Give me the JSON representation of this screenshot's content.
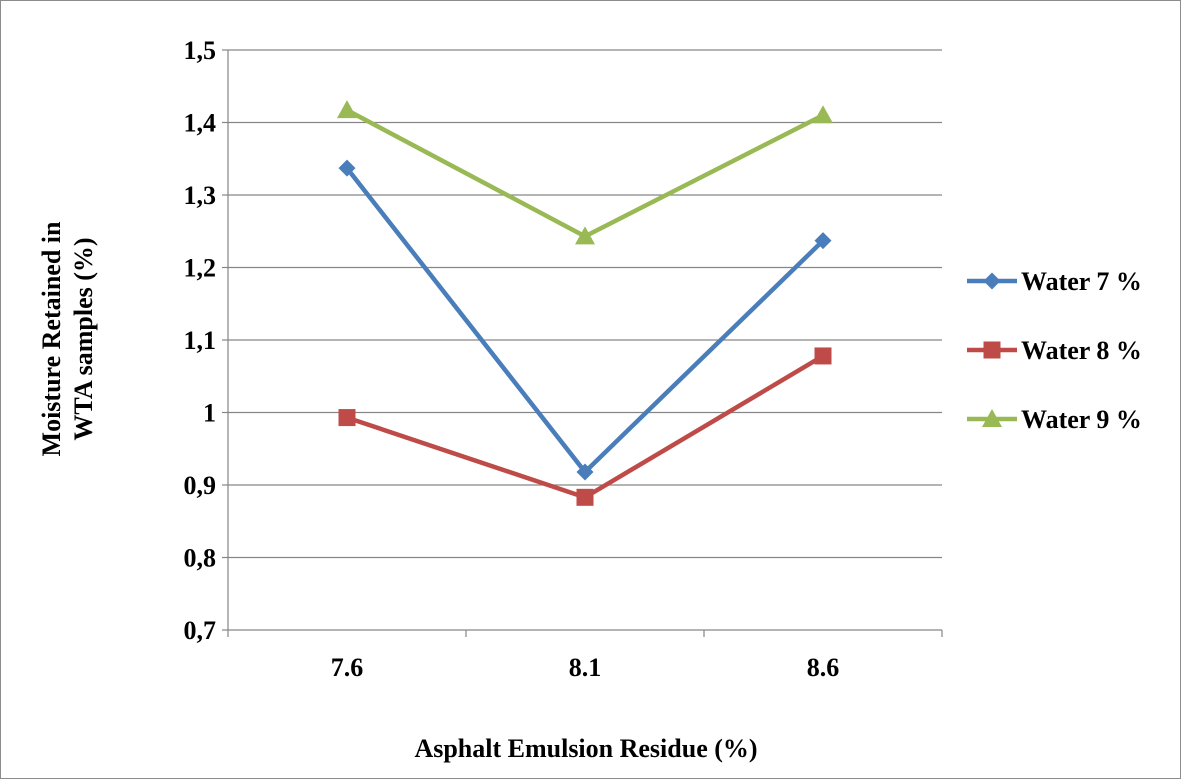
{
  "chart_data": {
    "type": "line",
    "x": [
      "7.6",
      "8.1",
      "8.6"
    ],
    "xlabel": "Asphalt Emulsion Residue (%)",
    "ylabel_lines": [
      "Moisture Retained in",
      "WTA samples (%)"
    ],
    "ylim": [
      0.7,
      1.5
    ],
    "yticks": [
      0.7,
      0.8,
      0.9,
      1.0,
      1.1,
      1.2,
      1.3,
      1.4,
      1.5
    ],
    "ytick_labels": [
      "0,7",
      "0,8",
      "0,9",
      "1",
      "1,1",
      "1,2",
      "1,3",
      "1,4",
      "1,5"
    ],
    "grid": true,
    "legend_position": "right",
    "series": [
      {
        "name": "Water 7 %",
        "values": [
          1.337,
          0.918,
          1.237
        ],
        "color": "#4a7ebb",
        "marker": "diamond"
      },
      {
        "name": "Water 8 %",
        "values": [
          0.993,
          0.883,
          1.078
        ],
        "color": "#be4b48",
        "marker": "square"
      },
      {
        "name": "Water 9 %",
        "values": [
          1.417,
          1.243,
          1.41
        ],
        "color": "#98b954",
        "marker": "triangle"
      }
    ]
  }
}
